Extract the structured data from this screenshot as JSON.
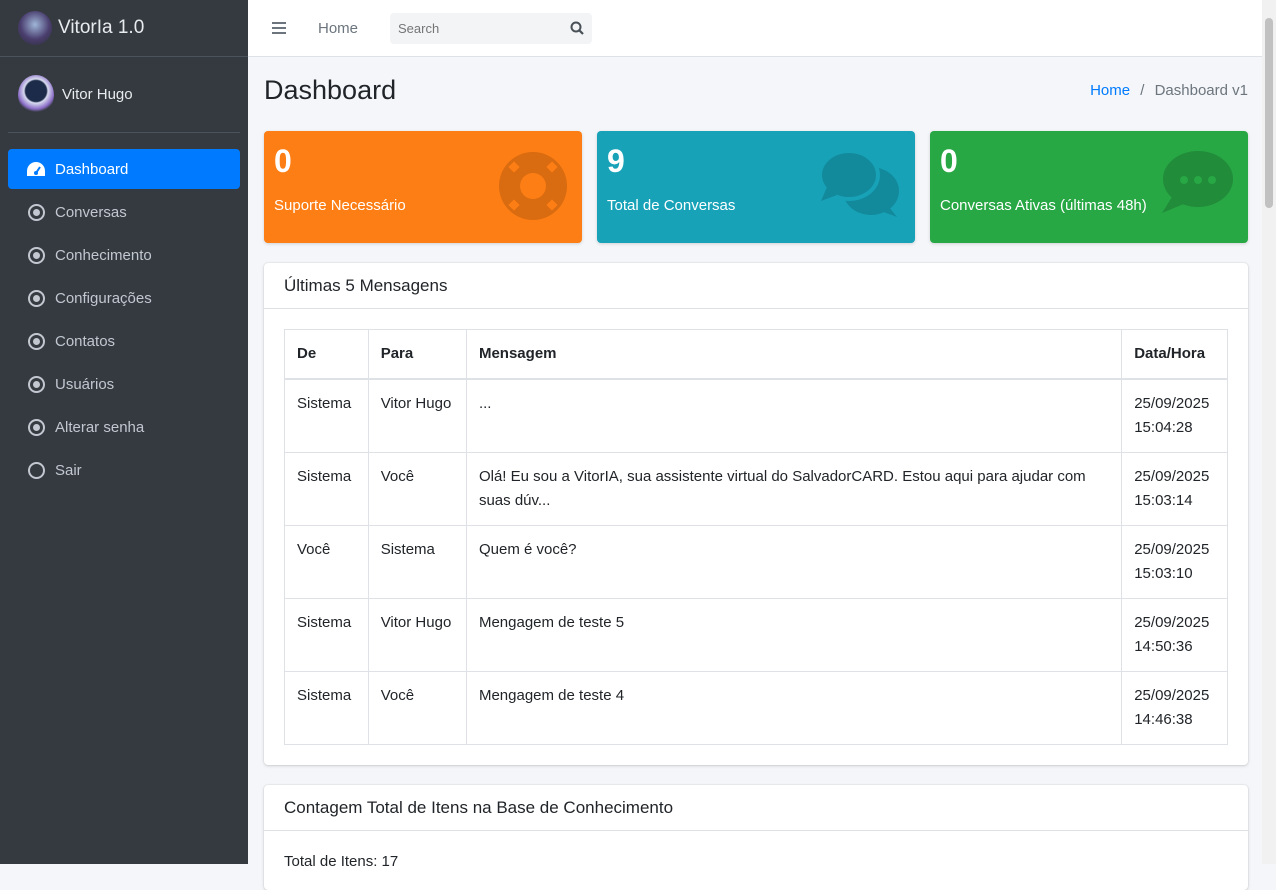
{
  "brand": {
    "title": "VitorIa 1.0"
  },
  "user": {
    "name": "Vitor Hugo"
  },
  "sidebar": {
    "items": [
      {
        "label": "Dashboard",
        "icon": "tachometer-icon",
        "active": true
      },
      {
        "label": "Conversas",
        "icon": "dot-circle-icon"
      },
      {
        "label": "Conhecimento",
        "icon": "dot-circle-icon"
      },
      {
        "label": "Configurações",
        "icon": "dot-circle-icon"
      },
      {
        "label": "Contatos",
        "icon": "dot-circle-icon"
      },
      {
        "label": "Usuários",
        "icon": "dot-circle-icon"
      },
      {
        "label": "Alterar senha",
        "icon": "dot-circle-icon"
      },
      {
        "label": "Sair",
        "icon": "circle-icon"
      }
    ]
  },
  "topbar": {
    "home": "Home",
    "search_placeholder": "Search"
  },
  "page": {
    "title": "Dashboard",
    "breadcrumb": {
      "home": "Home",
      "sep": "/",
      "current": "Dashboard v1"
    }
  },
  "stats": [
    {
      "value": "0",
      "label": "Suporte Necessário",
      "color": "#fd7e14",
      "icon": "life-ring-icon"
    },
    {
      "value": "9",
      "label": "Total de Conversas",
      "color": "#17a2b8",
      "icon": "comments-icon"
    },
    {
      "value": "0",
      "label": "Conversas Ativas (últimas 48h)",
      "color": "#28a745",
      "icon": "comment-dots-icon"
    }
  ],
  "messages": {
    "title": "Últimas 5 Mensagens",
    "columns": [
      "De",
      "Para",
      "Mensagem",
      "Data/Hora"
    ],
    "rows": [
      [
        "Sistema",
        "Vitor Hugo",
        "...",
        "25/09/2025 15:04:28"
      ],
      [
        "Sistema",
        "Você",
        "Olá! Eu sou a VitorIA, sua assistente virtual do SalvadorCARD. Estou aqui para ajudar com suas dúv...",
        "25/09/2025 15:03:14"
      ],
      [
        "Você",
        "Sistema",
        "Quem é você?",
        "25/09/2025 15:03:10"
      ],
      [
        "Sistema",
        "Vitor Hugo",
        "Mengagem de teste 5",
        "25/09/2025 14:50:36"
      ],
      [
        "Sistema",
        "Você",
        "Mengagem de teste 4",
        "25/09/2025 14:46:38"
      ]
    ]
  },
  "knowledge": {
    "title": "Contagem Total de Itens na Base de Conhecimento",
    "total": "Total de Itens: 17"
  }
}
